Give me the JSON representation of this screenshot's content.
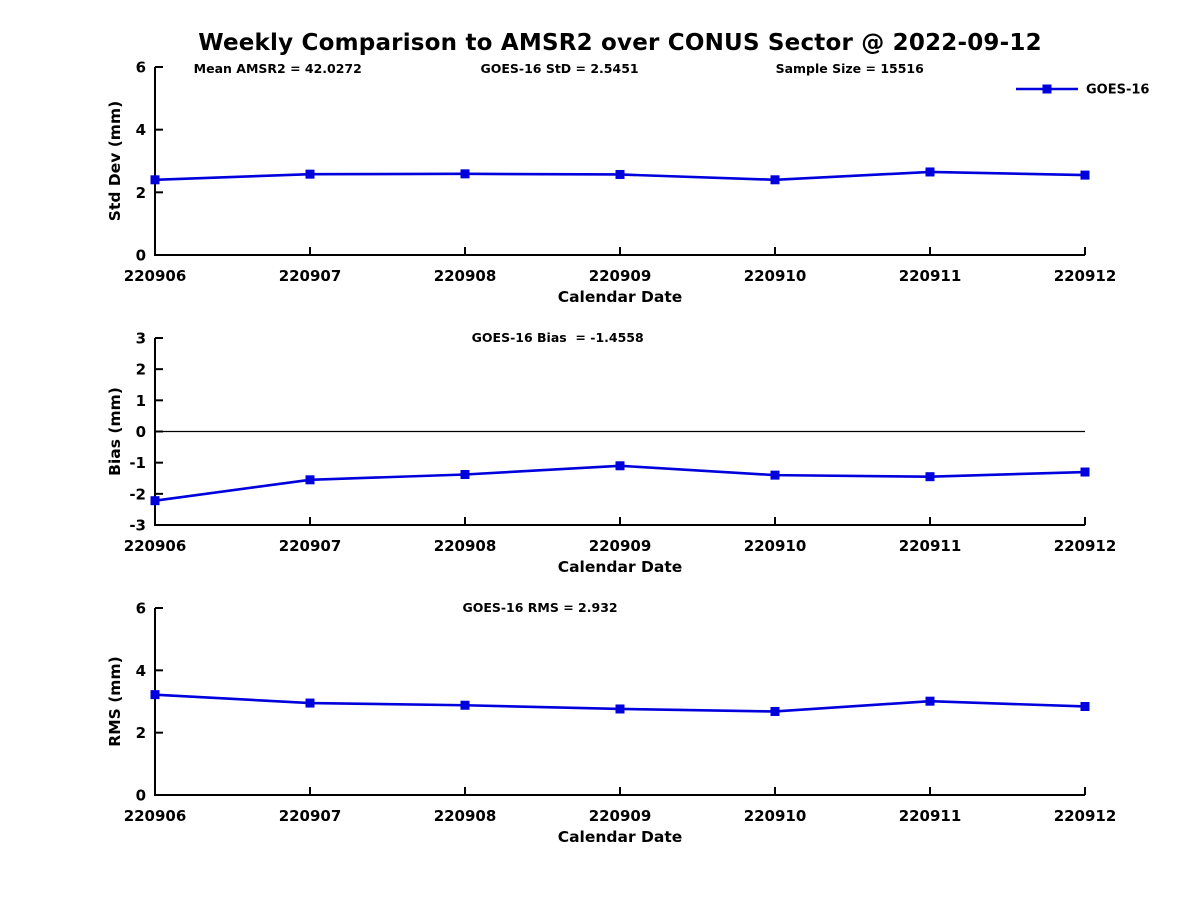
{
  "title": "Weekly Comparison to AMSR2 over CONUS Sector @ 2022-09-12",
  "accent_color": "#0000dd",
  "text_color": "#000000",
  "legend": {
    "label": "GOES-16"
  },
  "chart_data": [
    {
      "type": "line",
      "id": "std-dev",
      "annotations": [
        "Mean AMSR2 = 42.0272",
        "GOES-16 StD = 2.5451",
        "Sample Size = 15516"
      ],
      "categories": [
        "220906",
        "220907",
        "220908",
        "220909",
        "220910",
        "220911",
        "220912"
      ],
      "series": [
        {
          "name": "GOES-16",
          "values": [
            2.4,
            2.58,
            2.59,
            2.57,
            2.4,
            2.65,
            2.55
          ]
        }
      ],
      "xlabel": "Calendar Date",
      "ylabel": "Std Dev (mm)",
      "ylim": [
        0,
        6
      ],
      "yticks": [
        0,
        2,
        4,
        6
      ],
      "zero_line": false,
      "grid": "off",
      "legend_position": "top-right"
    },
    {
      "type": "line",
      "id": "bias",
      "annotations": [
        "GOES-16 Bias  = -1.4558"
      ],
      "categories": [
        "220906",
        "220907",
        "220908",
        "220909",
        "220910",
        "220911",
        "220912"
      ],
      "series": [
        {
          "name": "GOES-16",
          "values": [
            -2.22,
            -1.55,
            -1.38,
            -1.1,
            -1.4,
            -1.45,
            -1.3
          ]
        }
      ],
      "xlabel": "Calendar Date",
      "ylabel": "Bias (mm)",
      "ylim": [
        -3,
        3
      ],
      "yticks": [
        -3,
        -2,
        -1,
        0,
        1,
        2,
        3
      ],
      "zero_line": true,
      "grid": "off"
    },
    {
      "type": "line",
      "id": "rms",
      "annotations": [
        "GOES-16 RMS = 2.932"
      ],
      "categories": [
        "220906",
        "220907",
        "220908",
        "220909",
        "220910",
        "220911",
        "220912"
      ],
      "series": [
        {
          "name": "GOES-16",
          "values": [
            3.22,
            2.95,
            2.88,
            2.76,
            2.68,
            3.01,
            2.84
          ]
        }
      ],
      "xlabel": "Calendar Date",
      "ylabel": "RMS (mm)",
      "ylim": [
        0,
        6
      ],
      "yticks": [
        0,
        2,
        4,
        6
      ],
      "zero_line": false,
      "grid": "off"
    }
  ]
}
